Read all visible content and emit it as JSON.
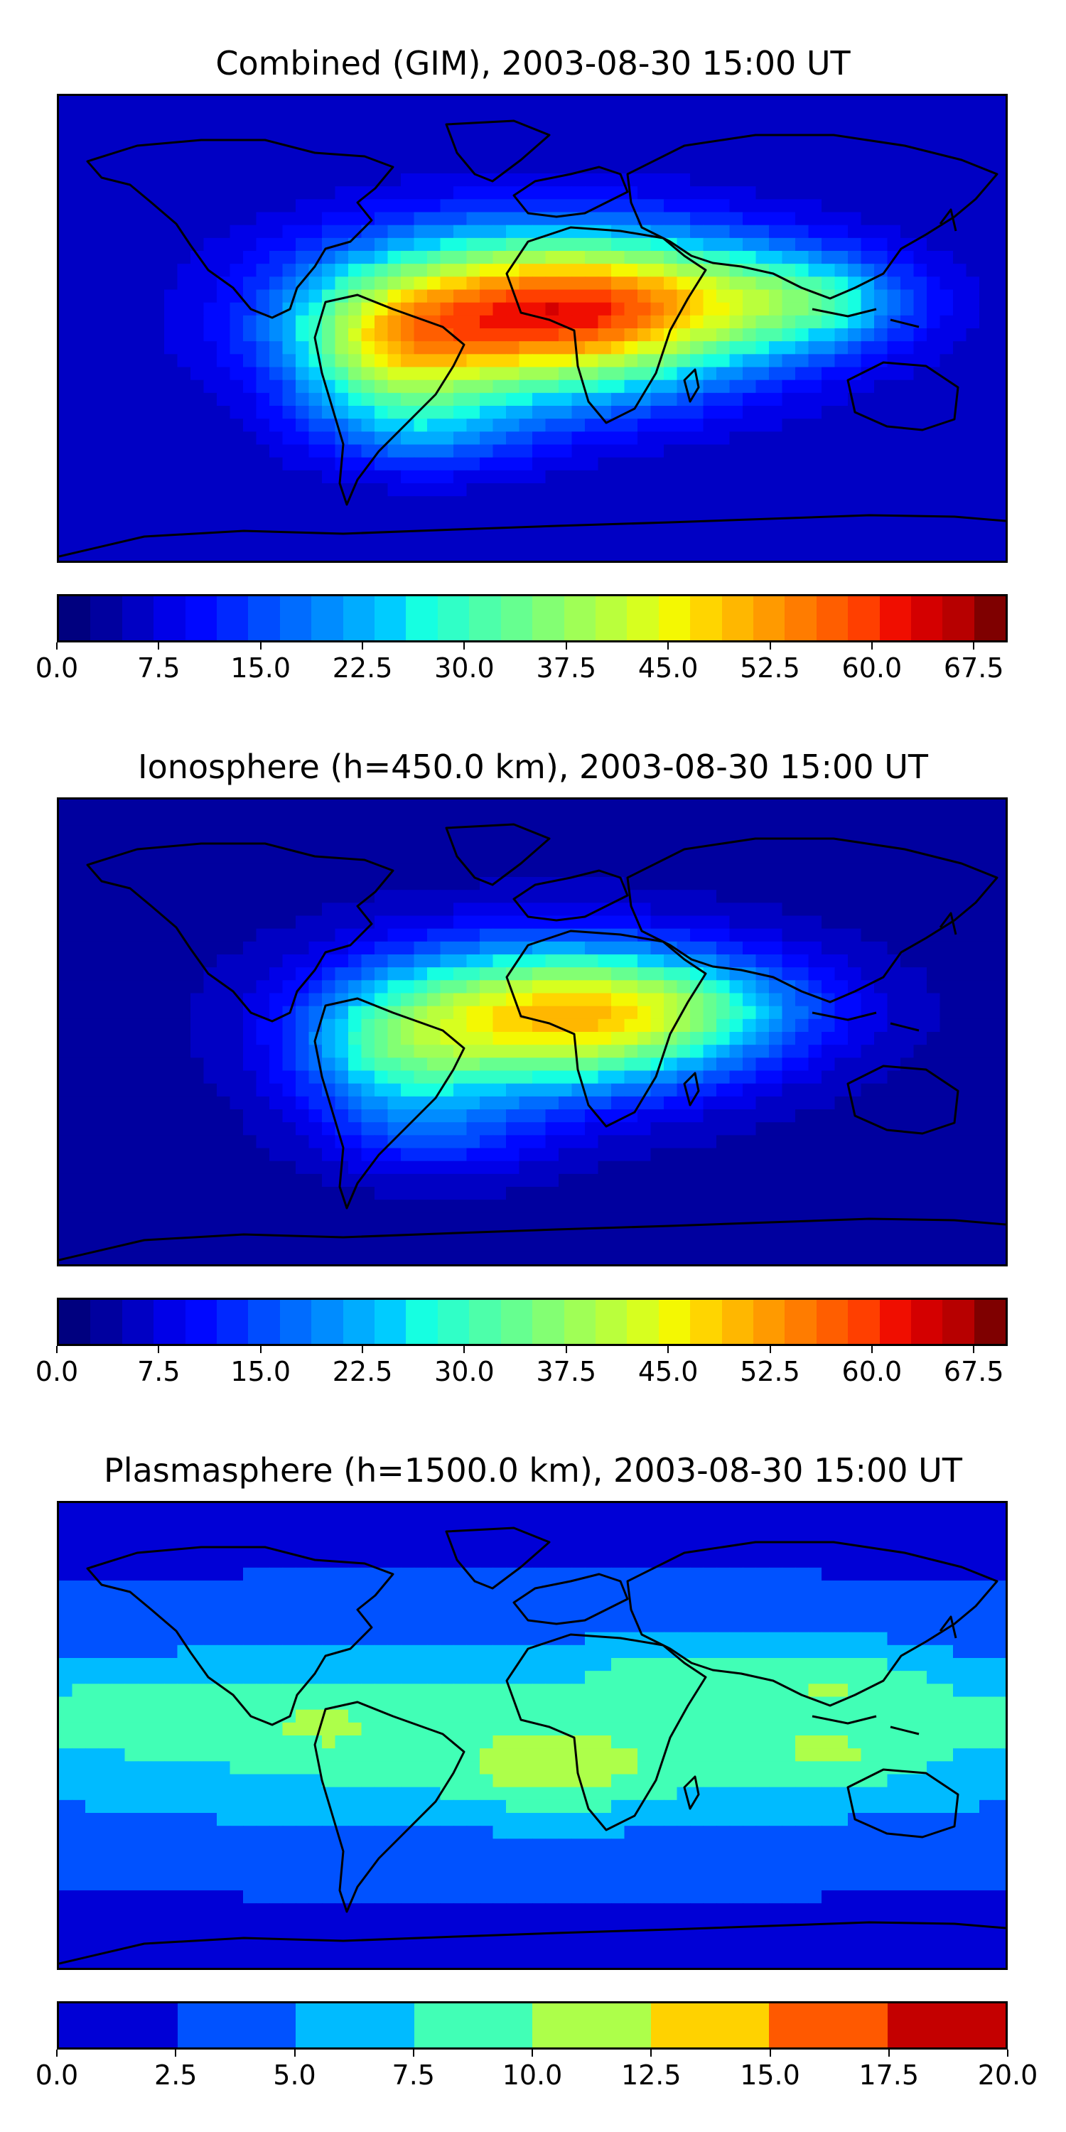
{
  "chart_data": [
    {
      "type": "heatmap",
      "title": "Combined (GIM), 2003-08-30 15:00 UT",
      "colorbar": {
        "min": 0.0,
        "max": 70.0,
        "step": 2.5,
        "tick_labels": [
          "0.0",
          "7.5",
          "15.0",
          "22.5",
          "30.0",
          "37.5",
          "45.0",
          "52.5",
          "60.0",
          "67.5"
        ]
      },
      "background_level": 5.0,
      "blobs": [
        {
          "lon": 0,
          "lat": 5,
          "sx": 55,
          "sy": 22,
          "amp": 52
        },
        {
          "lon": -55,
          "lat": -10,
          "sx": 25,
          "sy": 18,
          "amp": 18
        },
        {
          "lon": 65,
          "lat": 12,
          "sx": 45,
          "sy": 16,
          "amp": 15
        },
        {
          "lon": -40,
          "lat": -40,
          "sx": 30,
          "sy": 12,
          "amp": 10
        },
        {
          "lon": 110,
          "lat": 10,
          "sx": 25,
          "sy": 12,
          "amp": 12
        }
      ]
    },
    {
      "type": "heatmap",
      "title": "Ionosphere  (h=450.0 km), 2003-08-30 15:00 UT",
      "colorbar": {
        "min": 0.0,
        "max": 70.0,
        "step": 2.5,
        "tick_labels": [
          "0.0",
          "7.5",
          "15.0",
          "22.5",
          "30.0",
          "37.5",
          "45.0",
          "52.5",
          "60.0",
          "67.5"
        ]
      },
      "background_level": 3.5,
      "blobs": [
        {
          "lon": 5,
          "lat": 5,
          "sx": 50,
          "sy": 20,
          "amp": 42
        },
        {
          "lon": -55,
          "lat": -10,
          "sx": 25,
          "sy": 18,
          "amp": 14
        },
        {
          "lon": 60,
          "lat": 10,
          "sx": 40,
          "sy": 14,
          "amp": 12
        },
        {
          "lon": -35,
          "lat": -40,
          "sx": 30,
          "sy": 12,
          "amp": 8
        }
      ]
    },
    {
      "type": "heatmap",
      "title": "Plasmasphere (h=1500.0 km), 2003-08-30 15:00 UT",
      "colorbar": {
        "min": 0.0,
        "max": 20.0,
        "step": 2.5,
        "tick_labels": [
          "0.0",
          "2.5",
          "5.0",
          "7.5",
          "10.0",
          "12.5",
          "15.0",
          "17.5",
          "20.0"
        ]
      },
      "background_level": 2.0,
      "blobs": [
        {
          "lon": 0,
          "lat": 0,
          "sx": 200,
          "sy": 28,
          "amp": 7.0
        },
        {
          "lon": 10,
          "lat": -15,
          "sx": 25,
          "sy": 10,
          "amp": 3.5
        },
        {
          "lon": 115,
          "lat": 22,
          "sx": 25,
          "sy": 10,
          "amp": 3.5
        },
        {
          "lon": 115,
          "lat": -8,
          "sx": 25,
          "sy": 8,
          "amp": 2.5
        },
        {
          "lon": -155,
          "lat": 10,
          "sx": 30,
          "sy": 10,
          "amp": 2.5
        },
        {
          "lon": 55,
          "lat": 25,
          "sx": 20,
          "sy": 8,
          "amp": 2.5
        },
        {
          "lon": -80,
          "lat": 5,
          "sx": 18,
          "sy": 10,
          "amp": 2.0
        }
      ]
    }
  ],
  "colors": {
    "jet_levels_70": [
      "#00007f",
      "#00009f",
      "#0000c4",
      "#0000e8",
      "#0008ff",
      "#0028ff",
      "#004cff",
      "#006cff",
      "#008cff",
      "#00acff",
      "#00ccff",
      "#16ffe1",
      "#30ffc7",
      "#4dffaa",
      "#66ff90",
      "#83ff73",
      "#a0ff56",
      "#baff3c",
      "#d7ff1f",
      "#f4f802",
      "#ffd500",
      "#ffb700",
      "#ff9a00",
      "#ff7c00",
      "#ff5e00",
      "#ff3f00",
      "#f00e00",
      "#d40000",
      "#b70000",
      "#7f0000"
    ],
    "plasma_levels": [
      "#0000d6",
      "#0052ff",
      "#00bbff",
      "#41ffb6",
      "#adff4a",
      "#ffd200",
      "#ff5900",
      "#c40000"
    ]
  }
}
